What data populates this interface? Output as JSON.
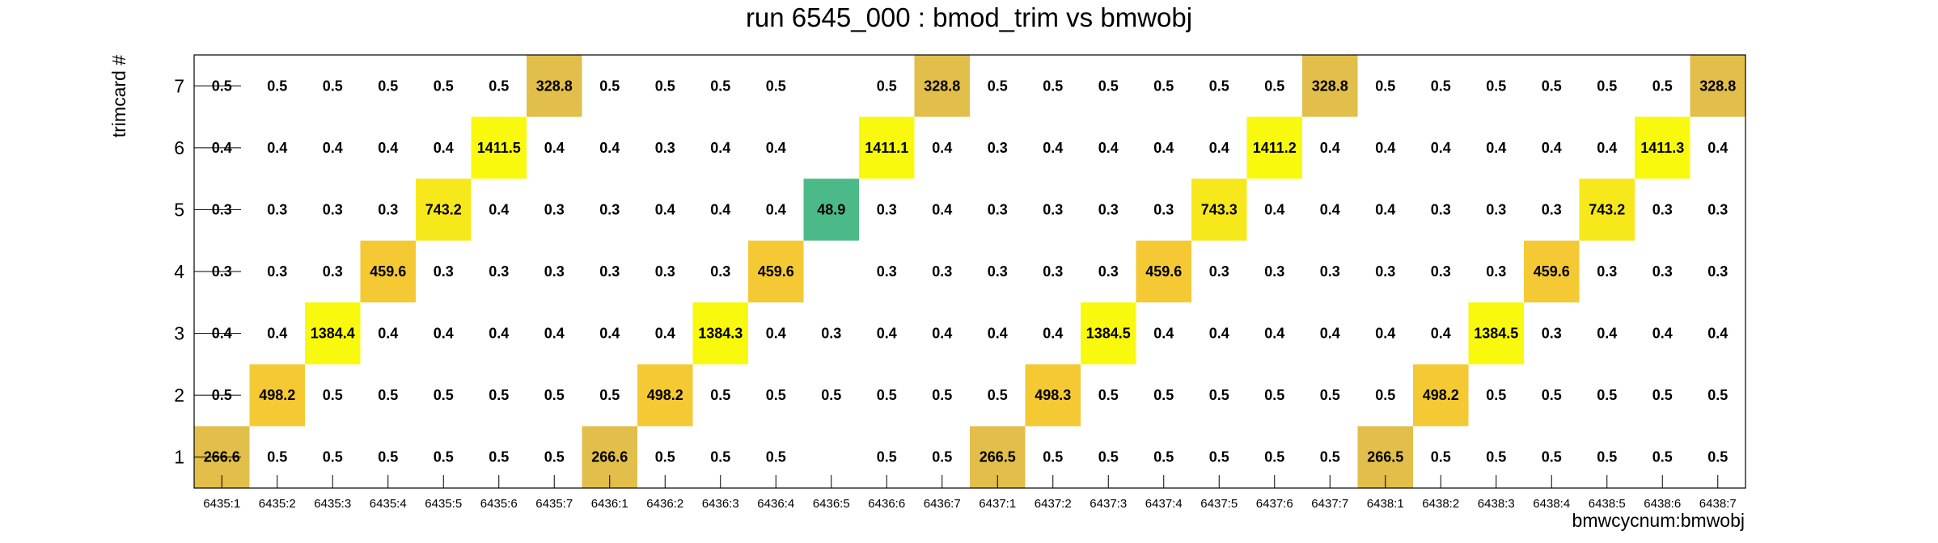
{
  "chart_data": {
    "type": "heatmap",
    "title": "run 6545_000 : bmod_trim vs bmwobj",
    "xlabel": "bmwcycnum:bmwobj",
    "ylabel": "trimcard #",
    "x_categories": [
      "6435:1",
      "6435:2",
      "6435:3",
      "6435:4",
      "6435:5",
      "6435:6",
      "6435:7",
      "6436:1",
      "6436:2",
      "6436:3",
      "6436:4",
      "6436:5",
      "6436:6",
      "6436:7",
      "6437:1",
      "6437:2",
      "6437:3",
      "6437:4",
      "6437:5",
      "6437:6",
      "6437:7",
      "6438:1",
      "6438:2",
      "6438:3",
      "6438:4",
      "6438:5",
      "6438:6",
      "6438:7"
    ],
    "y_categories": [
      "1",
      "2",
      "3",
      "4",
      "5",
      "6",
      "7"
    ],
    "values": [
      [
        266.6,
        0.5,
        0.5,
        0.5,
        0.5,
        0.5,
        0.5,
        266.6,
        0.5,
        0.5,
        0.5,
        null,
        0.5,
        0.5,
        266.5,
        0.5,
        0.5,
        0.5,
        0.5,
        0.5,
        0.5,
        266.5,
        0.5,
        0.5,
        0.5,
        0.5,
        0.5,
        0.5
      ],
      [
        0.5,
        498.2,
        0.5,
        0.5,
        0.5,
        0.5,
        0.5,
        0.5,
        498.2,
        0.5,
        0.5,
        0.5,
        0.5,
        0.5,
        0.5,
        498.3,
        0.5,
        0.5,
        0.5,
        0.5,
        0.5,
        0.5,
        498.2,
        0.5,
        0.5,
        0.5,
        0.5,
        0.5
      ],
      [
        0.4,
        0.4,
        1384.4,
        0.4,
        0.4,
        0.4,
        0.4,
        0.4,
        0.4,
        1384.3,
        0.4,
        0.3,
        0.4,
        0.4,
        0.4,
        0.4,
        1384.5,
        0.4,
        0.4,
        0.4,
        0.4,
        0.4,
        0.4,
        1384.5,
        0.3,
        0.4,
        0.4,
        0.4
      ],
      [
        0.3,
        0.3,
        0.3,
        459.6,
        0.3,
        0.3,
        0.3,
        0.3,
        0.3,
        0.3,
        459.6,
        null,
        0.3,
        0.3,
        0.3,
        0.3,
        0.3,
        459.6,
        0.3,
        0.3,
        0.3,
        0.3,
        0.3,
        0.3,
        459.6,
        0.3,
        0.3,
        0.3
      ],
      [
        0.3,
        0.3,
        0.3,
        0.3,
        743.2,
        0.4,
        0.3,
        0.3,
        0.4,
        0.4,
        0.4,
        48.9,
        0.3,
        0.4,
        0.3,
        0.3,
        0.3,
        0.3,
        743.3,
        0.4,
        0.4,
        0.4,
        0.3,
        0.3,
        0.3,
        743.2,
        0.3,
        0.3
      ],
      [
        0.4,
        0.4,
        0.4,
        0.4,
        0.4,
        1411.5,
        0.4,
        0.4,
        0.3,
        0.4,
        0.4,
        null,
        1411.1,
        0.4,
        0.3,
        0.4,
        0.4,
        0.4,
        0.4,
        1411.2,
        0.4,
        0.4,
        0.4,
        0.4,
        0.4,
        0.4,
        1411.3,
        0.4
      ],
      [
        0.5,
        0.5,
        0.5,
        0.5,
        0.5,
        0.5,
        328.8,
        0.5,
        0.5,
        0.5,
        0.5,
        null,
        0.5,
        328.8,
        0.5,
        0.5,
        0.5,
        0.5,
        0.5,
        0.5,
        328.8,
        0.5,
        0.5,
        0.5,
        0.5,
        0.5,
        0.5,
        328.8
      ]
    ],
    "colors": {
      "very_high": "#f9f90e",
      "high": "#f7e81b",
      "mid": "#f5c934",
      "lower": "#e2be4a",
      "low_green": "#4cba88",
      "frame": "#000000"
    },
    "grid": false,
    "legend": "none"
  }
}
